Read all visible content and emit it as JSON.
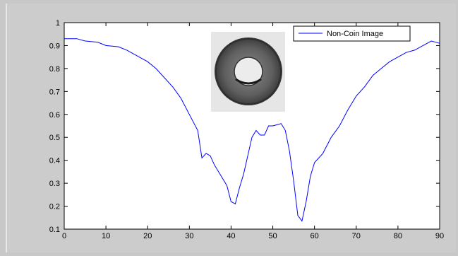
{
  "chart_data": {
    "type": "line",
    "title": "",
    "xlabel": "",
    "ylabel": "",
    "xlim": [
      0,
      90
    ],
    "ylim": [
      0.1,
      1.0
    ],
    "xticks": [
      "0",
      "10",
      "20",
      "30",
      "40",
      "50",
      "60",
      "70",
      "80",
      "90"
    ],
    "yticks": [
      "0.1",
      "0.2",
      "0.3",
      "0.4",
      "0.5",
      "0.6",
      "0.7",
      "0.8",
      "0.9",
      "1"
    ],
    "grid": false,
    "legend_position": "top-right",
    "inset_image": "coin-image",
    "series": [
      {
        "name": "Non-Coin Image",
        "color": "#0000ff",
        "x": [
          0,
          3,
          5,
          8,
          10,
          13,
          15,
          18,
          20,
          22,
          24,
          26,
          28,
          30,
          32,
          33,
          34,
          35,
          36,
          37,
          38,
          39,
          40,
          41,
          42,
          43,
          44,
          45,
          46,
          47,
          48,
          49,
          50,
          51,
          52,
          53,
          54,
          55,
          56,
          57,
          58,
          59,
          60,
          62,
          64,
          66,
          68,
          70,
          72,
          74,
          76,
          78,
          80,
          82,
          84,
          86,
          88,
          90
        ],
        "y": [
          0.93,
          0.93,
          0.92,
          0.915,
          0.9,
          0.895,
          0.88,
          0.85,
          0.83,
          0.8,
          0.76,
          0.72,
          0.67,
          0.6,
          0.53,
          0.41,
          0.43,
          0.42,
          0.38,
          0.35,
          0.32,
          0.29,
          0.22,
          0.21,
          0.28,
          0.34,
          0.42,
          0.5,
          0.53,
          0.51,
          0.51,
          0.55,
          0.55,
          0.555,
          0.56,
          0.53,
          0.44,
          0.31,
          0.16,
          0.135,
          0.22,
          0.33,
          0.39,
          0.43,
          0.5,
          0.55,
          0.62,
          0.68,
          0.72,
          0.77,
          0.8,
          0.83,
          0.85,
          0.87,
          0.88,
          0.9,
          0.92,
          0.91
        ]
      }
    ]
  }
}
